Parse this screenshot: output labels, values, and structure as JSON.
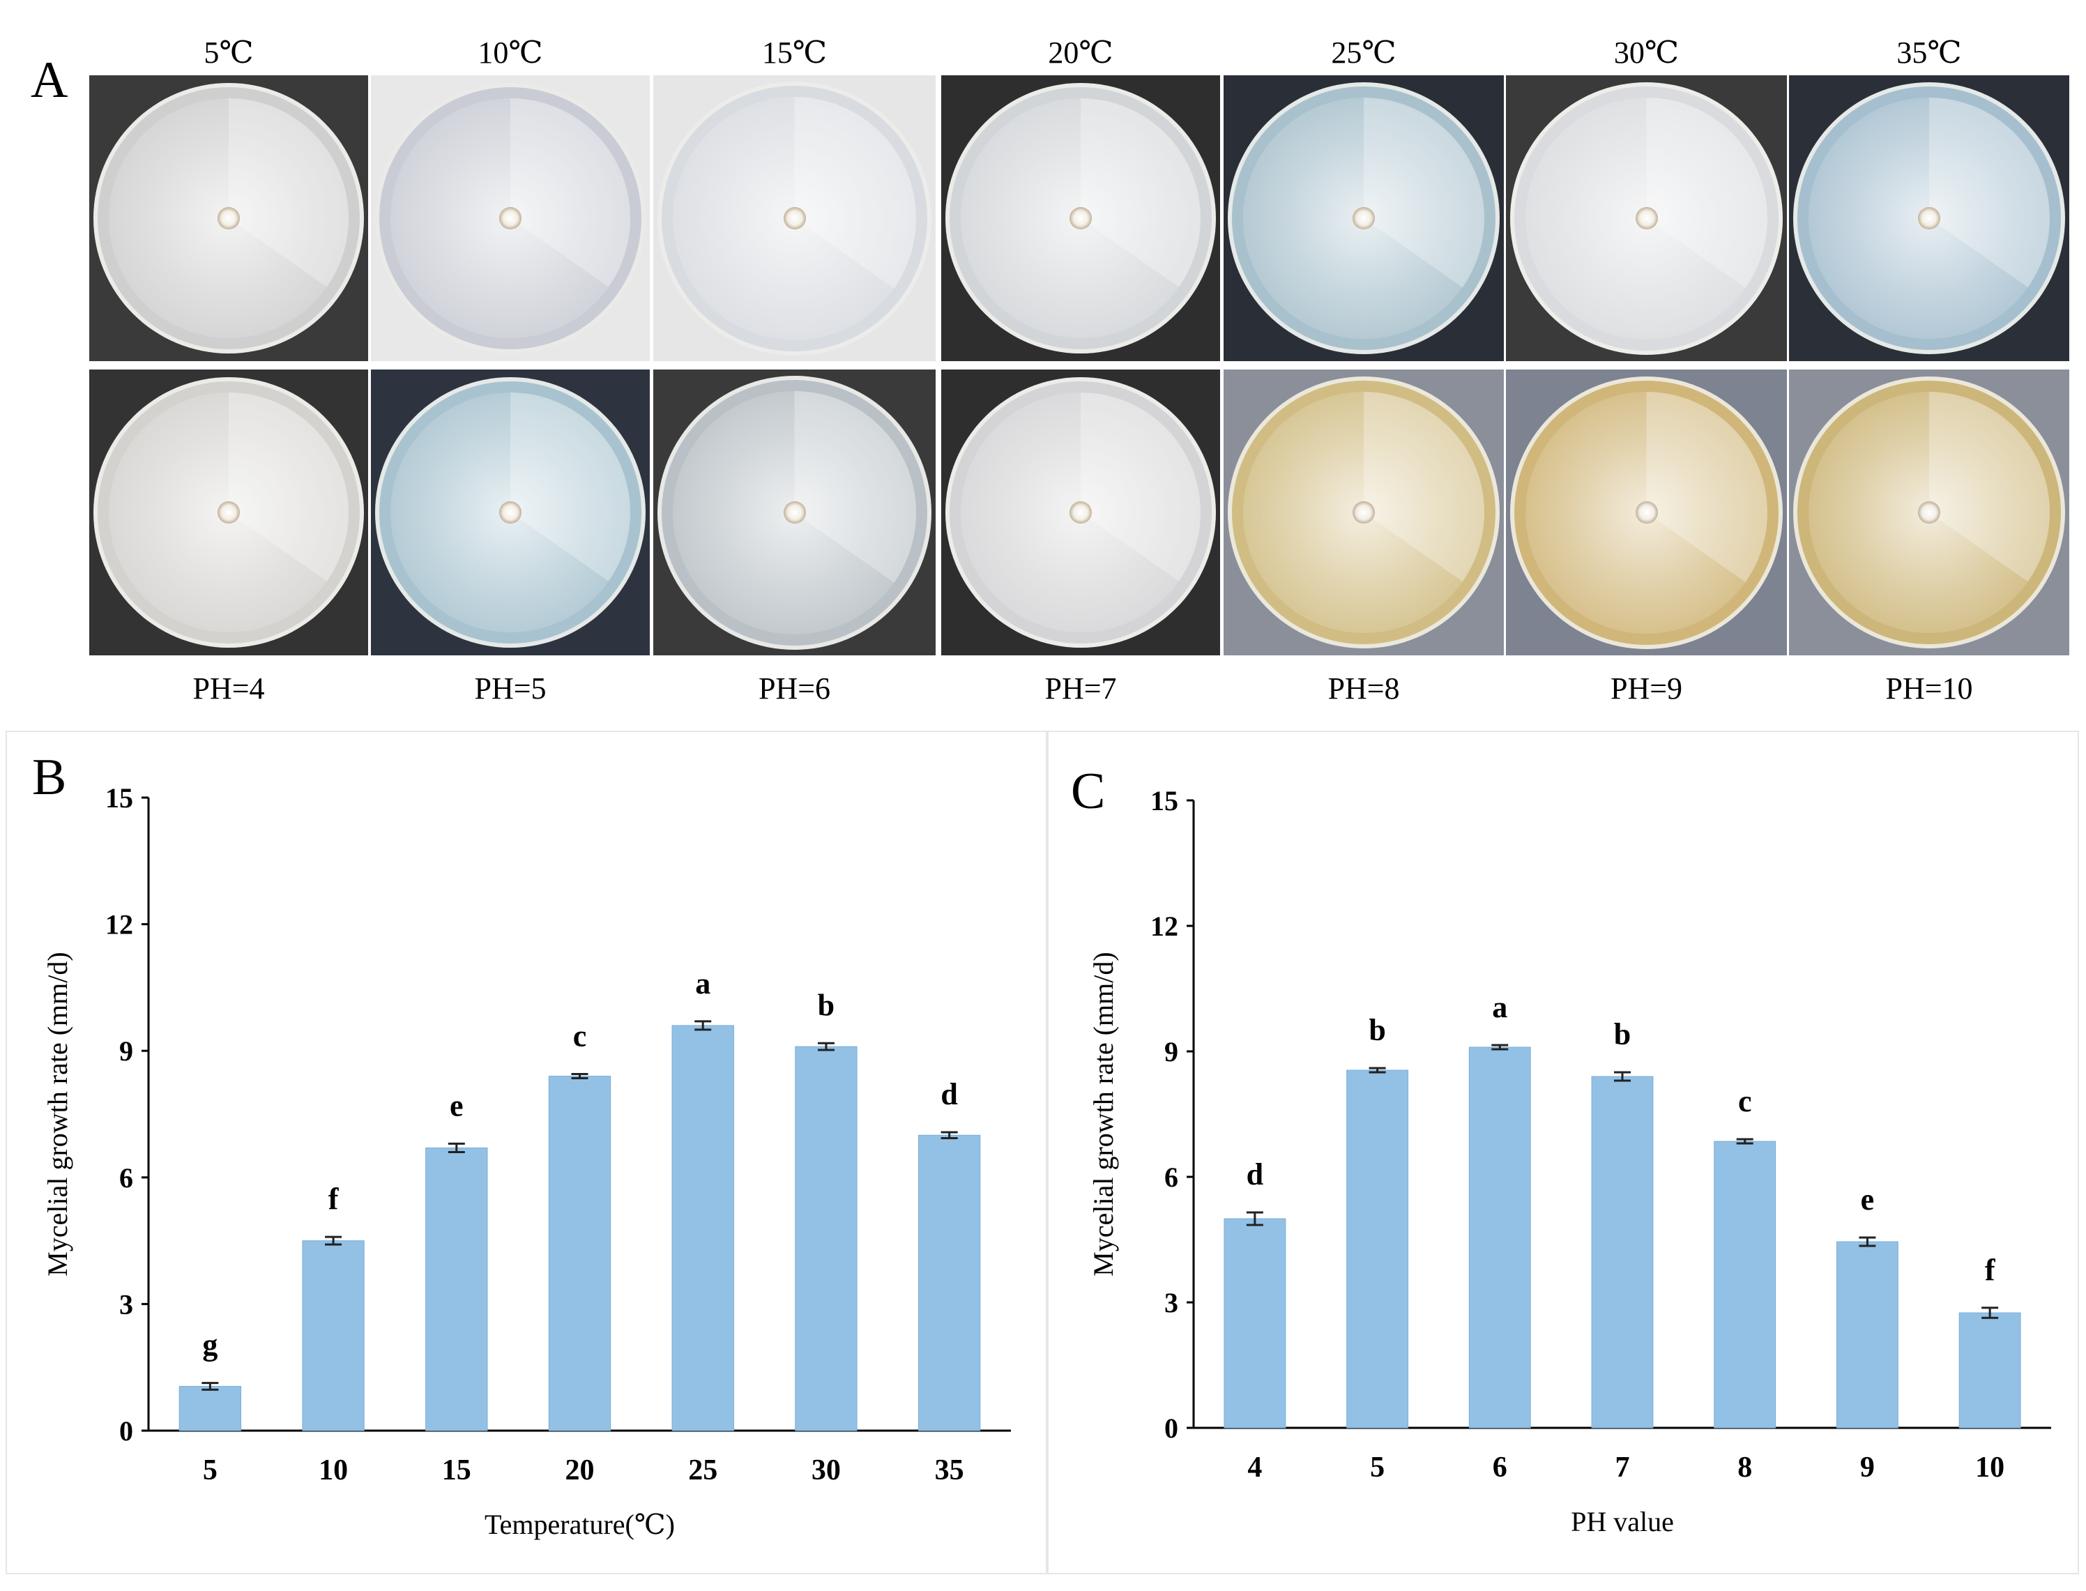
{
  "panel_labels": {
    "a": "A",
    "b": "B",
    "c": "C"
  },
  "temperature_labels": [
    "5℃",
    "10℃",
    "15℃",
    "20℃",
    "25℃",
    "30℃",
    "35℃"
  ],
  "ph_labels": [
    "PH=4",
    "PH=5",
    "PH=6",
    "PH=7",
    "PH=8",
    "PH=9",
    "PH=10"
  ],
  "plate_colors": {
    "row1": [
      "#cfcfcf",
      "#c9ccd4",
      "#d8dbe0",
      "#d2d5d8",
      "#a9c1cc",
      "#d9dbde",
      "#a6bfcf"
    ],
    "row2": [
      "#d4d2cf",
      "#a8c3cf",
      "#b9c1c6",
      "#d4d4d6",
      "#d1bd84",
      "#d0b679",
      "#cdb679"
    ],
    "backgrounds_row1": [
      "#3a3a3a",
      "#e8e8e8",
      "#e6e6e6",
      "#2e2e2e",
      "#2a2e36",
      "#3a3a3a",
      "#2b3038"
    ],
    "backgrounds_row2": [
      "#333333",
      "#2d3440",
      "#3a3a3a",
      "#2e2e2e",
      "#8a8f9a",
      "#7d8390",
      "#8a8f9a"
    ]
  },
  "colors": {
    "bar": "#93c1e5",
    "bar_edge": "#7aaed8",
    "axis": "#000000"
  },
  "chart_data": [
    {
      "type": "bar",
      "panel": "B",
      "categories": [
        "5",
        "10",
        "15",
        "20",
        "25",
        "30",
        "35"
      ],
      "values": [
        1.05,
        4.5,
        6.7,
        8.4,
        9.6,
        9.1,
        7.0
      ],
      "errors": [
        0.08,
        0.09,
        0.1,
        0.05,
        0.1,
        0.08,
        0.07
      ],
      "letters": [
        "g",
        "f",
        "e",
        "c",
        "a",
        "b",
        "d"
      ],
      "xlabel": "Temperature(℃)",
      "ylabel": "Mycelial growth rate (mm/d)",
      "ylim": [
        0,
        15
      ],
      "yticks": [
        0,
        3,
        6,
        9,
        12,
        15
      ],
      "grid": false
    },
    {
      "type": "bar",
      "panel": "C",
      "categories": [
        "4",
        "5",
        "6",
        "7",
        "8",
        "9",
        "10"
      ],
      "values": [
        5.0,
        8.55,
        9.1,
        8.4,
        6.85,
        4.45,
        2.75
      ],
      "errors": [
        0.15,
        0.05,
        0.05,
        0.1,
        0.05,
        0.1,
        0.12
      ],
      "letters": [
        "d",
        "b",
        "a",
        "b",
        "c",
        "e",
        "f"
      ],
      "xlabel": "PH value",
      "ylabel": "Mycelial growth rate (mm/d)",
      "ylim": [
        0,
        15
      ],
      "yticks": [
        0,
        3,
        6,
        9,
        12,
        15
      ],
      "grid": false
    }
  ]
}
